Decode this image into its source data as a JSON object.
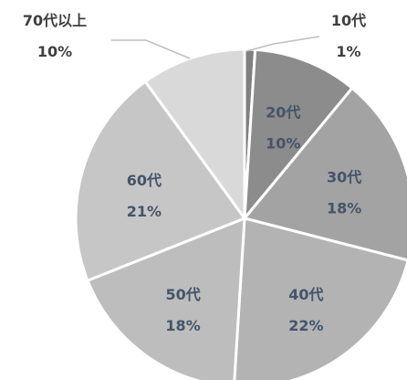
{
  "chart_data": {
    "type": "pie",
    "start_angle_deg": 0,
    "direction": "clockwise",
    "slices": [
      {
        "category": "10代",
        "percent_label": "1%",
        "value": 1,
        "color": "#808080",
        "label_style": "outside"
      },
      {
        "category": "20代",
        "percent_label": "10%",
        "value": 10,
        "color": "#8c8c8c",
        "label_style": "inside"
      },
      {
        "category": "30代",
        "percent_label": "18%",
        "value": 18,
        "color": "#a3a3a3",
        "label_style": "inside"
      },
      {
        "category": "40代",
        "percent_label": "22%",
        "value": 22,
        "color": "#b3b3b3",
        "label_style": "inside"
      },
      {
        "category": "50代",
        "percent_label": "18%",
        "value": 18,
        "color": "#bdbdbd",
        "label_style": "inside"
      },
      {
        "category": "60代",
        "percent_label": "21%",
        "value": 21,
        "color": "#c6c6c6",
        "label_style": "inside"
      },
      {
        "category": "70代以上",
        "percent_label": "10%",
        "value": 10,
        "color": "#d9d9d9",
        "label_style": "outside"
      }
    ],
    "separator_color": "#ffffff",
    "label_color_inside": "#44546a",
    "label_color_outside": "#3f3f3f",
    "leader_line_color": "#bfbfbf"
  }
}
